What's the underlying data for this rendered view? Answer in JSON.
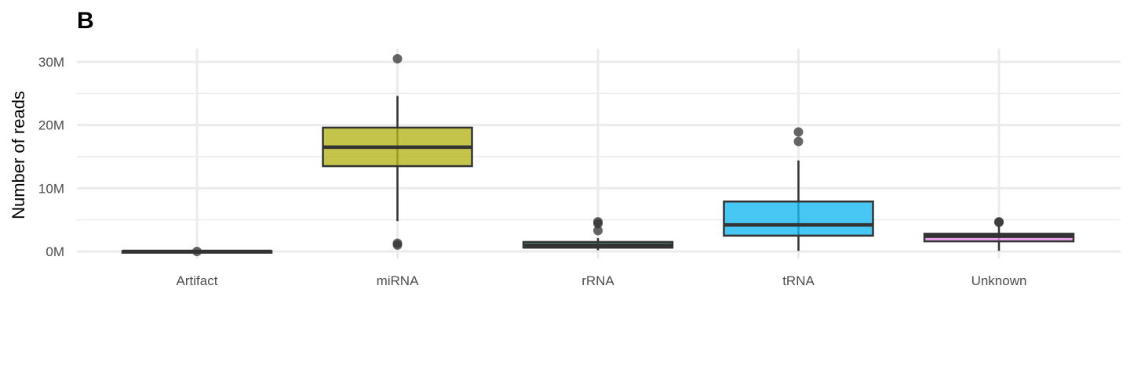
{
  "panel_tag": "B",
  "chart_data": {
    "type": "box",
    "title": "",
    "xlabel": "",
    "ylabel": "Number of reads",
    "ylim": [
      0,
      30000000
    ],
    "y_ticks": [
      0,
      10000000,
      20000000,
      30000000
    ],
    "y_tick_labels": [
      "0M",
      "10M",
      "20M",
      "30M"
    ],
    "grid": true,
    "legend": "none",
    "categories": [
      "Artifact",
      "miRNA",
      "rRNA",
      "tRNA",
      "Unknown"
    ],
    "boxes": [
      {
        "category": "Artifact",
        "color": "#F8766D",
        "min": 0,
        "q1": 0,
        "median": 0,
        "q3": 50000,
        "max": 80000,
        "outliers": [
          0
        ]
      },
      {
        "category": "miRNA",
        "color": "#B5B51E",
        "min": 4800000,
        "q1": 13500000,
        "median": 16500000,
        "q3": 19600000,
        "max": 24600000,
        "outliers": [
          30500000,
          1300000,
          1000000
        ]
      },
      {
        "category": "rRNA",
        "color": "#3DB388",
        "min": 200000,
        "q1": 600000,
        "median": 1000000,
        "q3": 1500000,
        "max": 2100000,
        "outliers": [
          4700000,
          4400000,
          3300000
        ]
      },
      {
        "category": "tRNA",
        "color": "#19B9F0",
        "min": 100000,
        "q1": 2500000,
        "median": 4200000,
        "q3": 7900000,
        "max": 14400000,
        "outliers": [
          18900000,
          17400000
        ]
      },
      {
        "category": "Unknown",
        "color": "#E78BEA",
        "min": 100000,
        "q1": 1600000,
        "median": 2400000,
        "q3": 2800000,
        "max": 4000000,
        "outliers": [
          4700000,
          4600000
        ]
      }
    ]
  }
}
